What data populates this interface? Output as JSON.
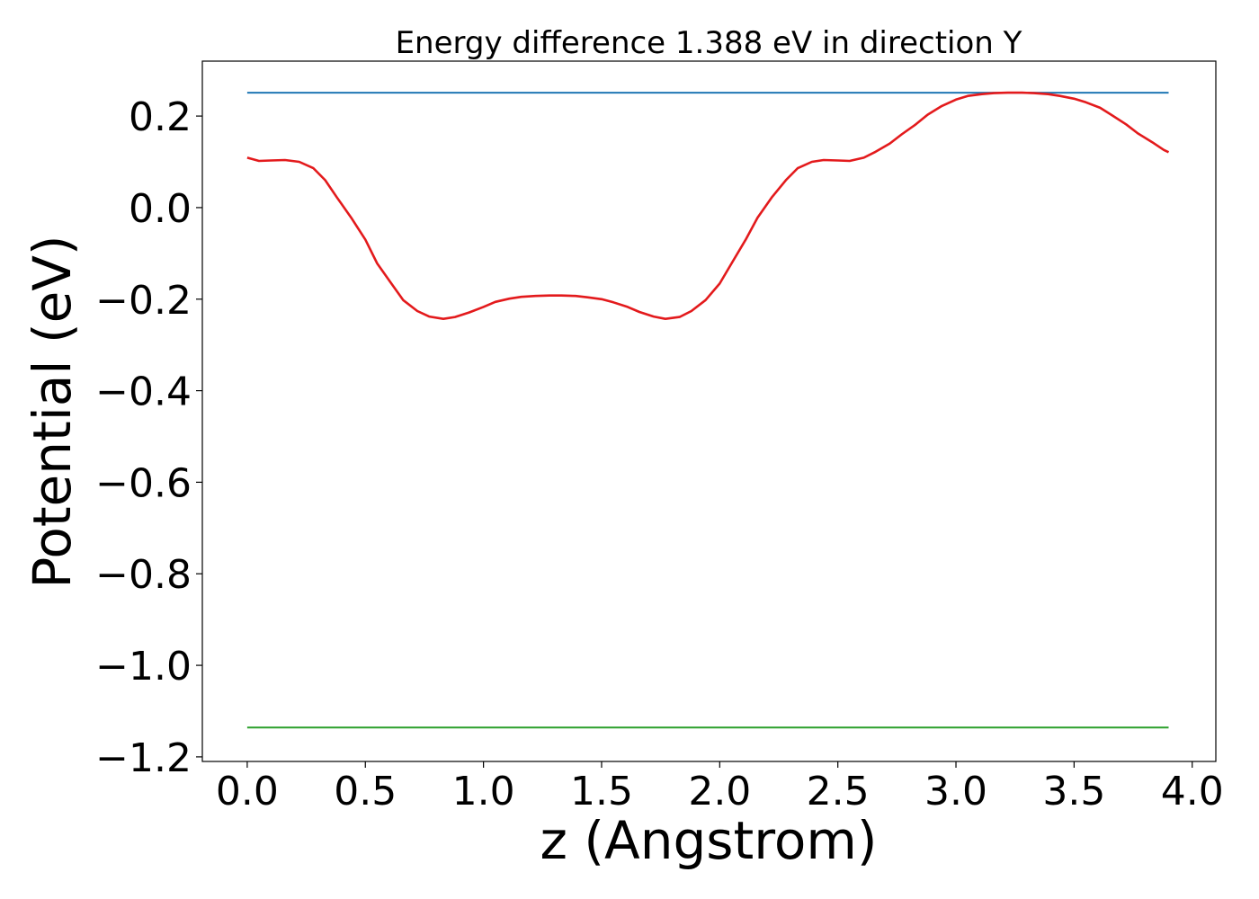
{
  "chart_data": {
    "type": "line",
    "title": "Energy difference 1.388 eV in direction Y",
    "xlabel": "z (Angstrom)",
    "ylabel": "Potential (eV)",
    "xlim": [
      -0.19,
      4.1
    ],
    "ylim": [
      -1.21,
      0.32
    ],
    "xticks": [
      0.0,
      0.5,
      1.0,
      1.5,
      2.0,
      2.5,
      3.0,
      3.5,
      4.0
    ],
    "xtick_labels": [
      "0.0",
      "0.5",
      "1.0",
      "1.5",
      "2.0",
      "2.5",
      "3.0",
      "3.5",
      "4.0"
    ],
    "yticks": [
      0.2,
      0.0,
      -0.2,
      -0.4,
      -0.6,
      -0.8,
      -1.0,
      -1.2
    ],
    "ytick_labels": [
      "0.2",
      "0.0",
      "−0.2",
      "−0.4",
      "−0.6",
      "−0.8",
      "−1.0",
      "−1.2"
    ],
    "grid": false,
    "series": [
      {
        "color": "#1f77b4",
        "x": [
          0.0,
          3.9
        ],
        "y": [
          0.251,
          0.251
        ]
      },
      {
        "color": "#2ca02c",
        "x": [
          0.0,
          3.9
        ],
        "y": [
          -1.136,
          -1.136
        ]
      },
      {
        "color": "#e31a1c",
        "x": [
          0.0,
          0.05,
          0.1,
          0.16,
          0.22,
          0.28,
          0.33,
          0.38,
          0.44,
          0.5,
          0.55,
          0.61,
          0.66,
          0.72,
          0.77,
          0.83,
          0.88,
          0.94,
          1.0,
          1.05,
          1.11,
          1.16,
          1.22,
          1.28,
          1.33,
          1.39,
          1.44,
          1.5,
          1.55,
          1.61,
          1.66,
          1.72,
          1.77,
          1.83,
          1.88,
          1.94,
          2.0,
          2.05,
          2.11,
          2.16,
          2.22,
          2.28,
          2.33,
          2.39,
          2.44,
          2.5,
          2.55,
          2.61,
          2.66,
          2.72,
          2.77,
          2.83,
          2.88,
          2.94,
          3.0,
          3.05,
          3.11,
          3.16,
          3.22,
          3.28,
          3.33,
          3.39,
          3.44,
          3.5,
          3.55,
          3.61,
          3.66,
          3.72,
          3.77,
          3.83,
          3.88,
          3.9
        ],
        "y": [
          0.109,
          0.102,
          0.103,
          0.104,
          0.1,
          0.086,
          0.06,
          0.022,
          -0.022,
          -0.07,
          -0.122,
          -0.166,
          -0.202,
          -0.226,
          -0.238,
          -0.243,
          -0.239,
          -0.229,
          -0.217,
          -0.206,
          -0.199,
          -0.195,
          -0.193,
          -0.192,
          -0.192,
          -0.193,
          -0.196,
          -0.2,
          -0.207,
          -0.217,
          -0.228,
          -0.238,
          -0.243,
          -0.239,
          -0.226,
          -0.202,
          -0.166,
          -0.122,
          -0.07,
          -0.022,
          0.022,
          0.06,
          0.086,
          0.1,
          0.104,
          0.103,
          0.102,
          0.109,
          0.122,
          0.14,
          0.16,
          0.182,
          0.203,
          0.222,
          0.236,
          0.244,
          0.248,
          0.25,
          0.251,
          0.251,
          0.25,
          0.248,
          0.244,
          0.238,
          0.23,
          0.218,
          0.202,
          0.182,
          0.162,
          0.143,
          0.126,
          0.121
        ]
      }
    ]
  }
}
